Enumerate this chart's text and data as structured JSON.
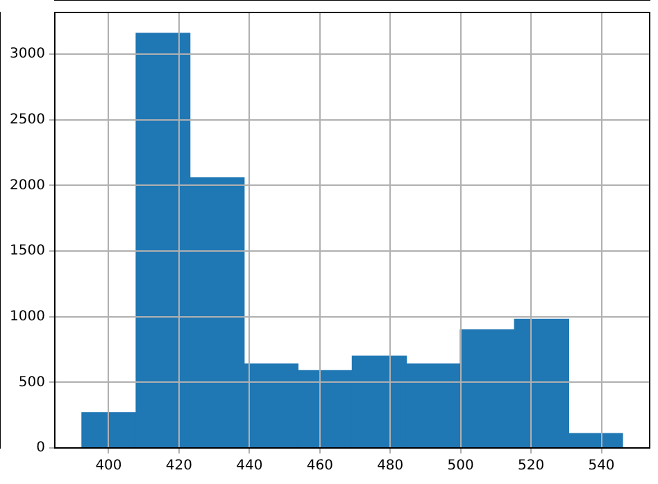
{
  "chart_data": {
    "type": "histogram",
    "bins": [
      392.4,
      407.8,
      423.1,
      438.5,
      453.8,
      469.2,
      484.6,
      499.9,
      515.3,
      530.7,
      546.0
    ],
    "values": [
      270,
      3160,
      2060,
      640,
      590,
      700,
      640,
      900,
      980,
      110
    ],
    "color": "#1f77b4",
    "xlim": [
      384.7,
      553.7
    ],
    "xticks": [
      400,
      420,
      440,
      460,
      480,
      500,
      520,
      540
    ],
    "ylim": [
      0,
      3318
    ],
    "yticks": [
      0,
      500,
      1000,
      1500,
      2000,
      2500,
      3000
    ],
    "grid": true,
    "legend": false
  }
}
